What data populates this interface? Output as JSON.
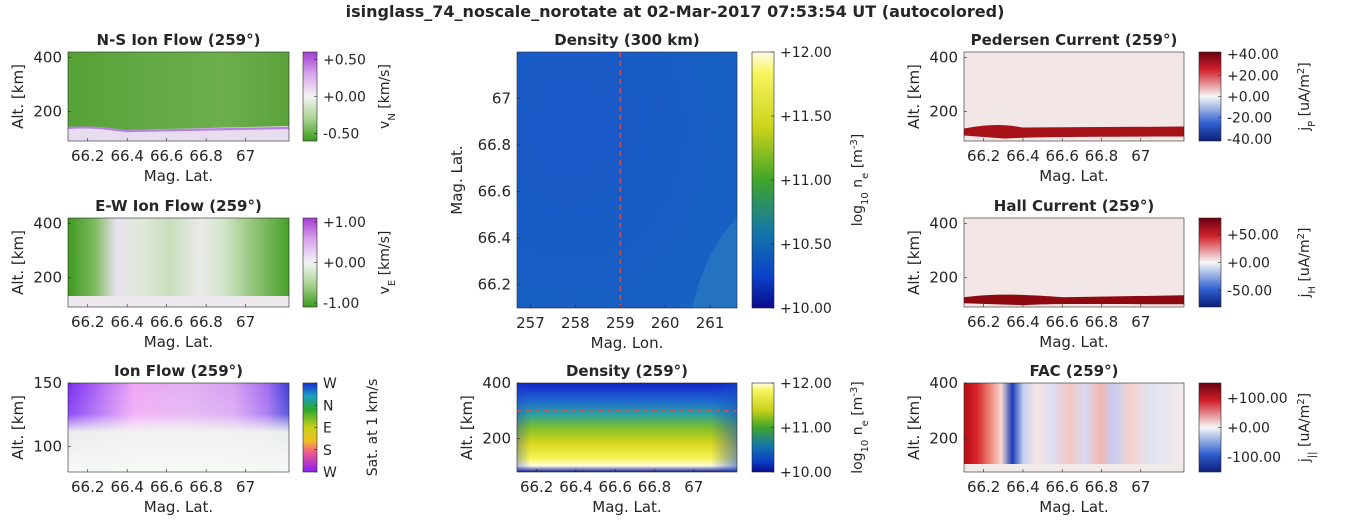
{
  "figure": {
    "title": "isinglass_74_noscale_norotate at 02-Mar-2017 07:53:54 UT (autocolored)"
  },
  "chart_data": [
    {
      "id": "ns-ion-flow",
      "type": "heatmap",
      "title": "N-S Ion Flow (259°)",
      "xlabel": "Mag. Lat.",
      "ylabel": "Alt. [km]",
      "xticks": [
        "66.2",
        "66.4",
        "66.6",
        "66.8",
        "67"
      ],
      "xtick_values": [
        66.2,
        66.4,
        66.6,
        66.8,
        67.0
      ],
      "xlim": [
        66.1,
        67.22
      ],
      "yticks": [
        "200",
        "400"
      ],
      "ytick_values": [
        200,
        400
      ],
      "ylim": [
        90,
        420
      ],
      "colorbar": {
        "label": "v_N [km/s]",
        "ticks": [
          "+0.50",
          "+0.00",
          "-0.50"
        ],
        "tick_values": [
          0.5,
          0.0,
          -0.5
        ],
        "range": [
          -0.6,
          0.6
        ],
        "colormap": "green-white-purple"
      },
      "description_color": "#5ea83c"
    },
    {
      "id": "ew-ion-flow",
      "type": "heatmap",
      "title": "E-W Ion Flow (259°)",
      "xlabel": "Mag. Lat.",
      "ylabel": "Alt. [km]",
      "xticks": [
        "66.2",
        "66.4",
        "66.6",
        "66.8",
        "67"
      ],
      "xtick_values": [
        66.2,
        66.4,
        66.6,
        66.8,
        67.0
      ],
      "xlim": [
        66.1,
        67.22
      ],
      "yticks": [
        "200",
        "400"
      ],
      "ytick_values": [
        200,
        400
      ],
      "ylim": [
        90,
        420
      ],
      "colorbar": {
        "label": "v_E [km/s]",
        "ticks": [
          "+1.00",
          "+0.00",
          "-1.00"
        ],
        "tick_values": [
          1.0,
          0.0,
          -1.0
        ],
        "range": [
          -1.1,
          1.1
        ],
        "colormap": "green-white-purple"
      }
    },
    {
      "id": "ion-flow",
      "type": "heatmap",
      "title": "Ion Flow (259°)",
      "xlabel": "Mag. Lat.",
      "ylabel": "Alt. [km]",
      "xticks": [
        "66.2",
        "66.4",
        "66.6",
        "66.8",
        "67"
      ],
      "xtick_values": [
        66.2,
        66.4,
        66.6,
        66.8,
        67.0
      ],
      "xlim": [
        66.1,
        67.22
      ],
      "yticks": [
        "100",
        "150"
      ],
      "ytick_values": [
        100,
        150
      ],
      "ylim": [
        80,
        150
      ],
      "colorbar": {
        "label": "Sat. at 1 km/s",
        "ticks": [
          "W",
          "N",
          "E",
          "S",
          "W"
        ],
        "colormap": "hsv-direction"
      }
    },
    {
      "id": "density-300km",
      "type": "heatmap",
      "title": "Density (300 km)",
      "xlabel": "Mag. Lon.",
      "ylabel": "Mag. Lat.",
      "xticks": [
        "257",
        "258",
        "259",
        "260",
        "261"
      ],
      "xtick_values": [
        257,
        258,
        259,
        260,
        261
      ],
      "xlim": [
        256.7,
        261.6
      ],
      "yticks": [
        "66.2",
        "66.4",
        "66.6",
        "66.8",
        "67"
      ],
      "ytick_values": [
        66.2,
        66.4,
        66.6,
        66.8,
        67.0
      ],
      "ylim": [
        66.1,
        67.2
      ],
      "marker_line": {
        "axis": "x",
        "value": 259,
        "color": "#e05050",
        "style": "dashed"
      },
      "colorbar": {
        "label": "log10 n_e [m^-3]",
        "ticks": [
          "+12.00",
          "+11.50",
          "+11.00",
          "+10.50",
          "+10.00"
        ],
        "tick_values": [
          12.0,
          11.5,
          11.0,
          10.5,
          10.0
        ],
        "range": [
          10.0,
          12.0
        ],
        "colormap": "parula-like"
      }
    },
    {
      "id": "density-259",
      "type": "heatmap",
      "title": "Density (259°)",
      "xlabel": "Mag. Lat.",
      "ylabel": "Alt. [km]",
      "xticks": [
        "66.2",
        "66.4",
        "66.6",
        "66.8",
        "67"
      ],
      "xtick_values": [
        66.2,
        66.4,
        66.6,
        66.8,
        67.0
      ],
      "xlim": [
        66.1,
        67.22
      ],
      "yticks": [
        "200",
        "400"
      ],
      "ytick_values": [
        200,
        400
      ],
      "ylim": [
        80,
        400
      ],
      "marker_line": {
        "axis": "y",
        "value": 300,
        "color": "#e05050",
        "style": "dashed"
      },
      "colorbar": {
        "label": "log10 n_e [m^-3]",
        "ticks": [
          "+12.00",
          "+11.00",
          "+10.00"
        ],
        "tick_values": [
          12.0,
          11.0,
          10.0
        ],
        "range": [
          10.0,
          12.0
        ],
        "colormap": "parula-like"
      }
    },
    {
      "id": "pedersen-current",
      "type": "heatmap",
      "title": "Pedersen Current (259°)",
      "xlabel": "Mag. Lat.",
      "ylabel": "Alt. [km]",
      "xticks": [
        "66.2",
        "66.4",
        "66.6",
        "66.8",
        "67"
      ],
      "xtick_values": [
        66.2,
        66.4,
        66.6,
        66.8,
        67.0
      ],
      "xlim": [
        66.1,
        67.22
      ],
      "yticks": [
        "200",
        "400"
      ],
      "ytick_values": [
        200,
        400
      ],
      "ylim": [
        90,
        420
      ],
      "colorbar": {
        "label": "j_P [uA/m^2]",
        "ticks": [
          "+40.00",
          "+20.00",
          "+0.00",
          "-20.00",
          "-40.00"
        ],
        "tick_values": [
          40,
          20,
          0,
          -20,
          -40
        ],
        "range": [
          -42,
          42
        ],
        "colormap": "blue-white-red"
      }
    },
    {
      "id": "hall-current",
      "type": "heatmap",
      "title": "Hall Current (259°)",
      "xlabel": "Mag. Lat.",
      "ylabel": "Alt. [km]",
      "xticks": [
        "66.2",
        "66.4",
        "66.6",
        "66.8",
        "67"
      ],
      "xtick_values": [
        66.2,
        66.4,
        66.6,
        66.8,
        67.0
      ],
      "xlim": [
        66.1,
        67.22
      ],
      "yticks": [
        "200",
        "400"
      ],
      "ytick_values": [
        200,
        400
      ],
      "ylim": [
        90,
        420
      ],
      "colorbar": {
        "label": "j_H [uA/m^2]",
        "ticks": [
          "+50.00",
          "+0.00",
          "-50.00"
        ],
        "tick_values": [
          50,
          0,
          -50
        ],
        "range": [
          -80,
          80
        ],
        "colormap": "blue-white-red"
      }
    },
    {
      "id": "fac",
      "type": "heatmap",
      "title": "FAC (259°)",
      "xlabel": "Mag. Lat.",
      "ylabel": "Alt. [km]",
      "xticks": [
        "66.2",
        "66.4",
        "66.6",
        "66.8",
        "67"
      ],
      "xtick_values": [
        66.2,
        66.4,
        66.6,
        66.8,
        67.0
      ],
      "xlim": [
        66.1,
        67.22
      ],
      "yticks": [
        "200",
        "400"
      ],
      "ytick_values": [
        200,
        400
      ],
      "ylim": [
        80,
        400
      ],
      "colorbar": {
        "label": "j_|| [uA/m^2]",
        "ticks": [
          "+100.00",
          "+0.00",
          "-100.00"
        ],
        "tick_values": [
          100,
          0,
          -100
        ],
        "range": [
          -150,
          150
        ],
        "colormap": "blue-white-red"
      }
    }
  ]
}
